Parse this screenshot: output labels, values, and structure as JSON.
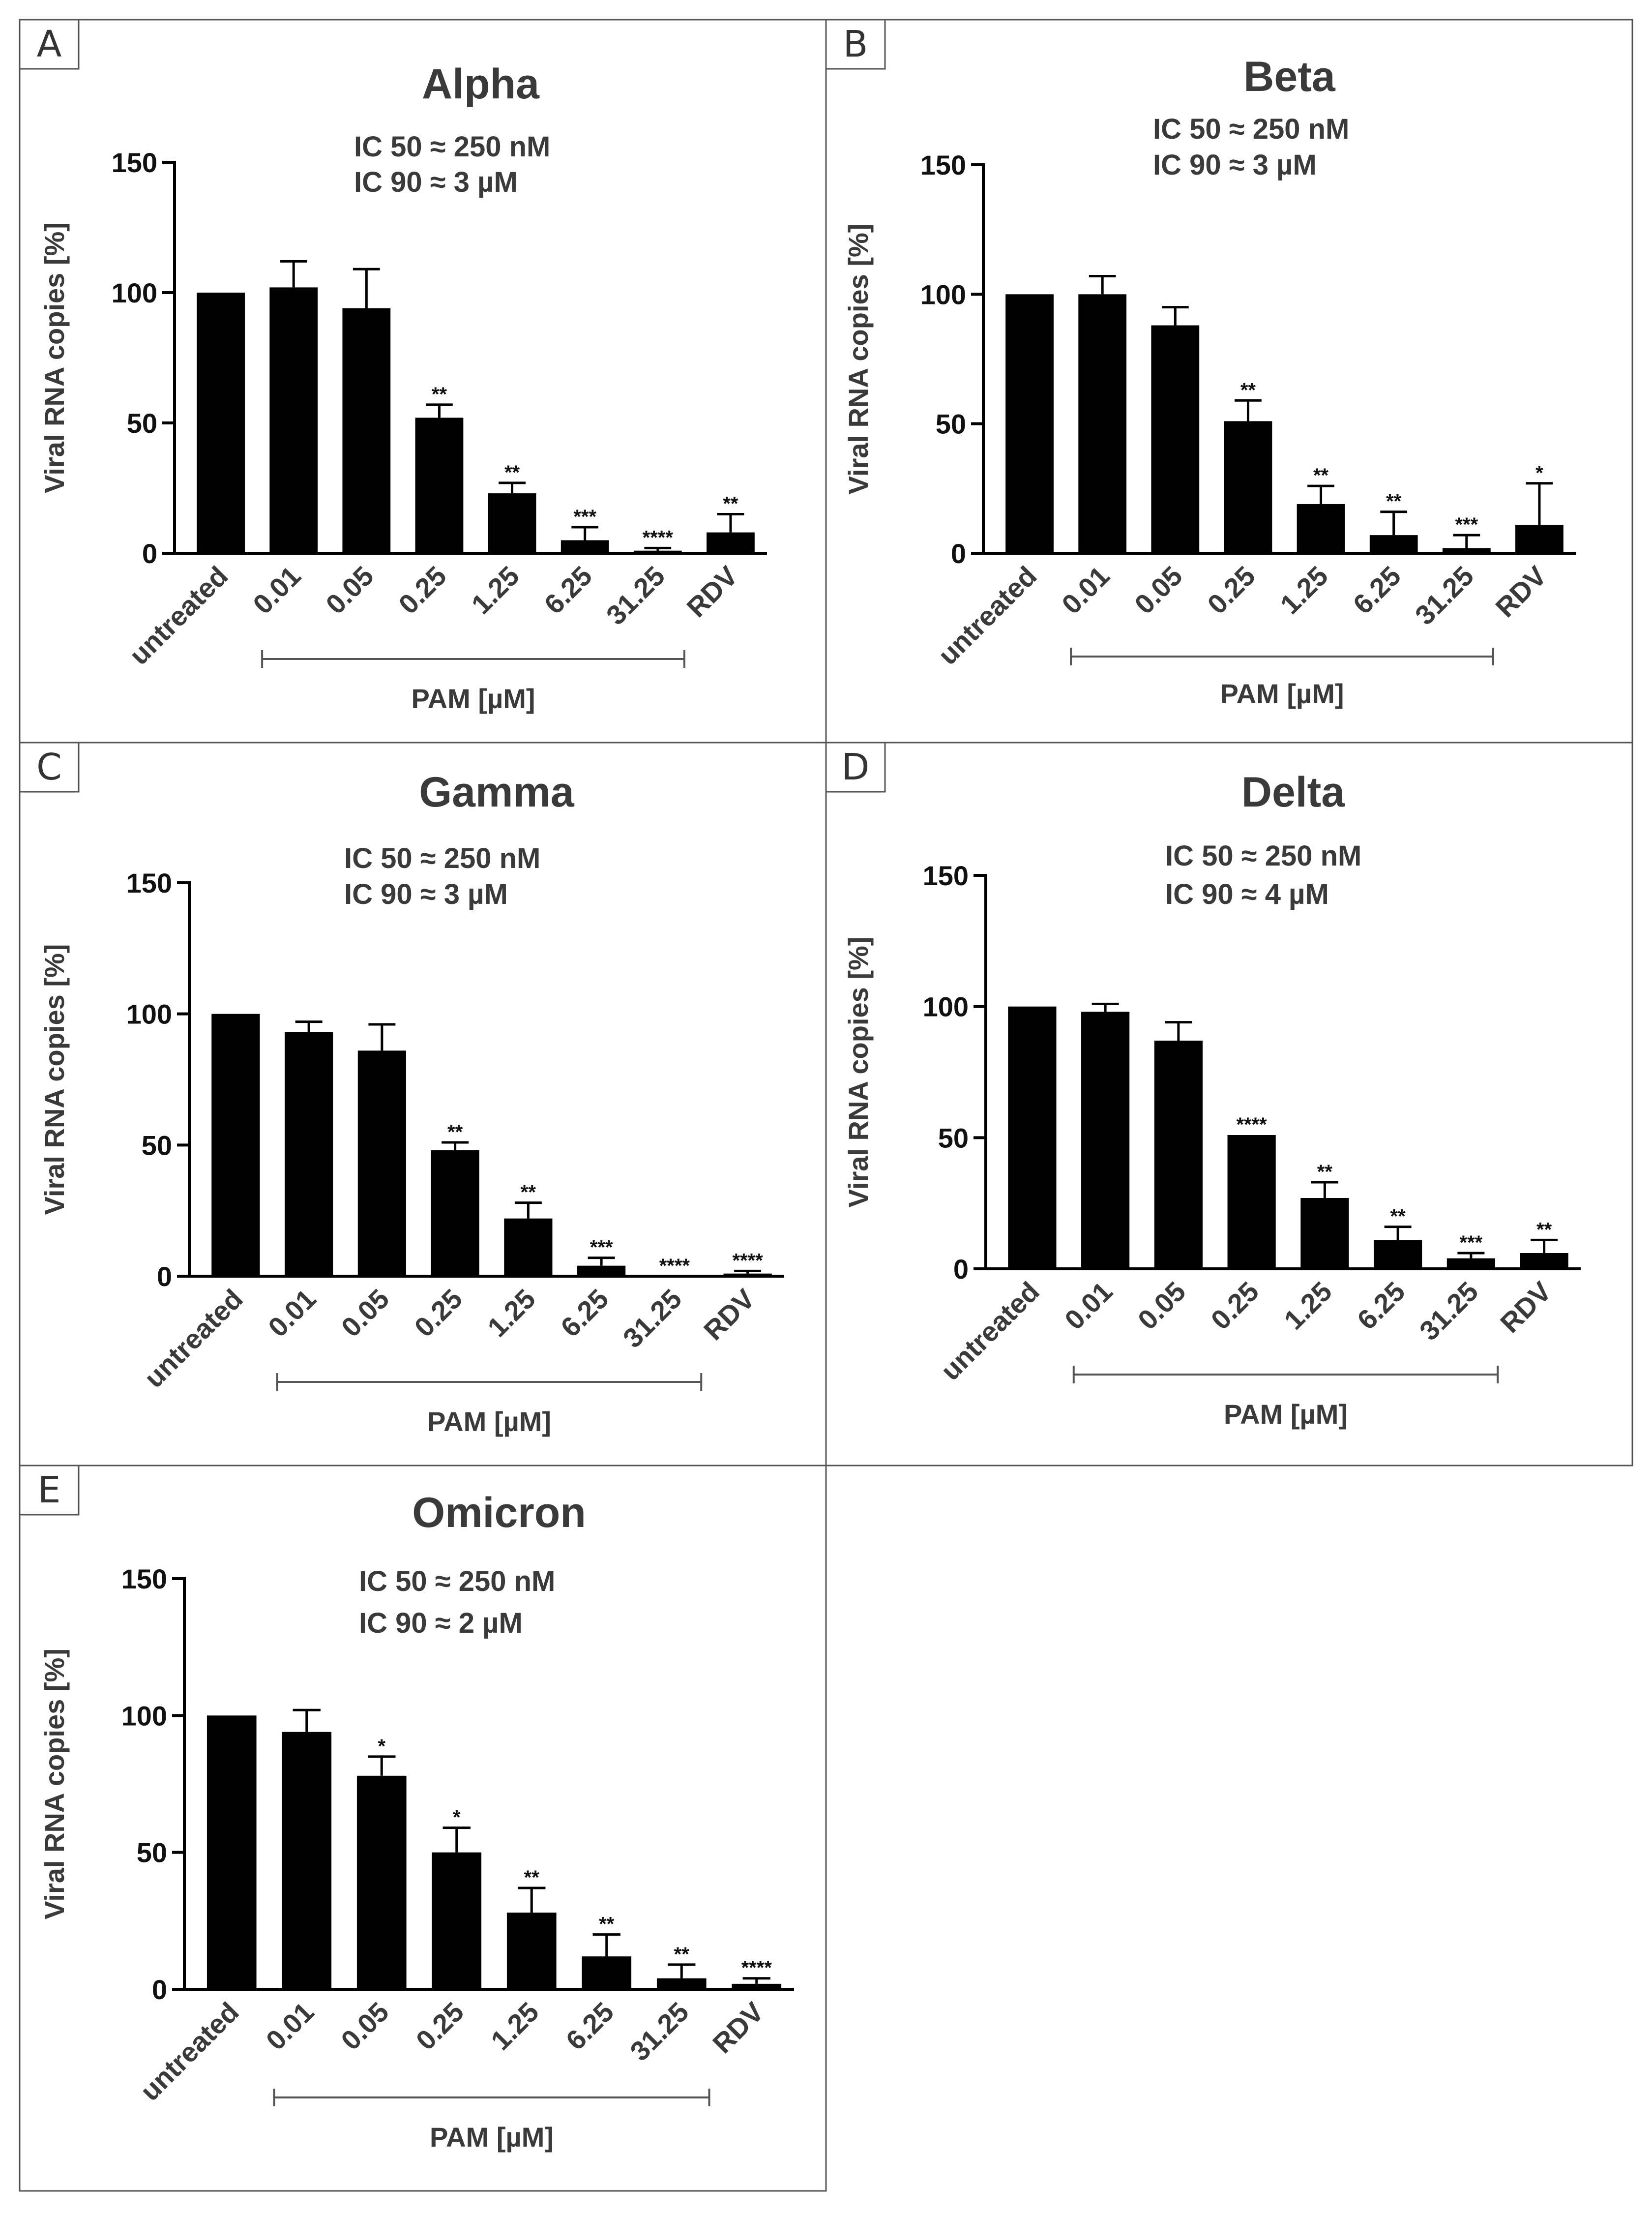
{
  "figure": {
    "y_axis_label": "Viral RNA copies [%]",
    "group_label": "PAM [µM]"
  },
  "chart_data": [
    {
      "panel": "A",
      "type": "bar",
      "title": "Alpha",
      "ic50": "IC 50 ≈ 250 nM",
      "ic90": "IC 90 ≈ 3 µM",
      "ylabel": "Viral RNA copies [%]",
      "xlabel": "PAM [µM]",
      "ylim": [
        0,
        150
      ],
      "yticks": [
        0,
        50,
        100,
        150
      ],
      "categories": [
        "untreated",
        "0.01",
        "0.05",
        "0.25",
        "1.25",
        "6.25",
        "31.25",
        "RDV"
      ],
      "values": [
        100,
        102,
        94,
        52,
        23,
        5,
        1,
        8
      ],
      "errors": [
        0,
        10,
        15,
        5,
        4,
        5,
        1,
        7
      ],
      "significance": [
        "",
        "",
        "",
        "**",
        "**",
        "***",
        "****",
        "**"
      ]
    },
    {
      "panel": "B",
      "type": "bar",
      "title": "Beta",
      "ic50": "IC 50 ≈ 250 nM",
      "ic90": "IC 90 ≈ 3 µM",
      "ylabel": "Viral RNA copies [%]",
      "xlabel": "PAM [µM]",
      "ylim": [
        0,
        150
      ],
      "yticks": [
        0,
        50,
        100,
        150
      ],
      "categories": [
        "untreated",
        "0.01",
        "0.05",
        "0.25",
        "1.25",
        "6.25",
        "31.25",
        "RDV"
      ],
      "values": [
        100,
        100,
        88,
        51,
        19,
        7,
        2,
        11
      ],
      "errors": [
        0,
        7,
        7,
        8,
        7,
        9,
        5,
        16
      ],
      "significance": [
        "",
        "",
        "",
        "**",
        "**",
        "**",
        "***",
        "*"
      ]
    },
    {
      "panel": "C",
      "type": "bar",
      "title": "Gamma",
      "ic50": "IC 50 ≈ 250 nM",
      "ic90": "IC 90 ≈ 3 µM",
      "ylabel": "Viral RNA copies [%]",
      "xlabel": "PAM [µM]",
      "ylim": [
        0,
        150
      ],
      "yticks": [
        0,
        50,
        100,
        150
      ],
      "categories": [
        "untreated",
        "0.01",
        "0.05",
        "0.25",
        "1.25",
        "6.25",
        "31.25",
        "RDV"
      ],
      "values": [
        100,
        93,
        86,
        48,
        22,
        4,
        0,
        1
      ],
      "errors": [
        0,
        4,
        10,
        3,
        6,
        3,
        0,
        1
      ],
      "significance": [
        "",
        "",
        "",
        "**",
        "**",
        "***",
        "****",
        "****"
      ]
    },
    {
      "panel": "D",
      "type": "bar",
      "title": "Delta",
      "ic50": "IC 50 ≈ 250 nM",
      "ic90": "IC 90 ≈ 4 µM",
      "ylabel": "Viral RNA copies [%]",
      "xlabel": "PAM [µM]",
      "ylim": [
        0,
        150
      ],
      "yticks": [
        0,
        50,
        100,
        150
      ],
      "categories": [
        "untreated",
        "0.01",
        "0.05",
        "0.25",
        "1.25",
        "6.25",
        "31.25",
        "RDV"
      ],
      "values": [
        100,
        98,
        87,
        51,
        27,
        11,
        4,
        6
      ],
      "errors": [
        0,
        3,
        7,
        0,
        6,
        5,
        2,
        5
      ],
      "significance": [
        "",
        "",
        "",
        "****",
        "**",
        "**",
        "***",
        "**"
      ]
    },
    {
      "panel": "E",
      "type": "bar",
      "title": "Omicron",
      "ic50": "IC 50 ≈ 250 nM",
      "ic90": "IC 90 ≈ 2 µM",
      "ylabel": "Viral RNA copies [%]",
      "xlabel": "PAM [µM]",
      "ylim": [
        0,
        150
      ],
      "yticks": [
        0,
        50,
        100,
        150
      ],
      "categories": [
        "untreated",
        "0.01",
        "0.05",
        "0.25",
        "1.25",
        "6.25",
        "31.25",
        "RDV"
      ],
      "values": [
        100,
        94,
        78,
        50,
        28,
        12,
        4,
        2
      ],
      "errors": [
        0,
        8,
        7,
        9,
        9,
        8,
        5,
        2
      ],
      "significance": [
        "",
        "",
        "*",
        "*",
        "**",
        "**",
        "**",
        "****"
      ]
    }
  ]
}
